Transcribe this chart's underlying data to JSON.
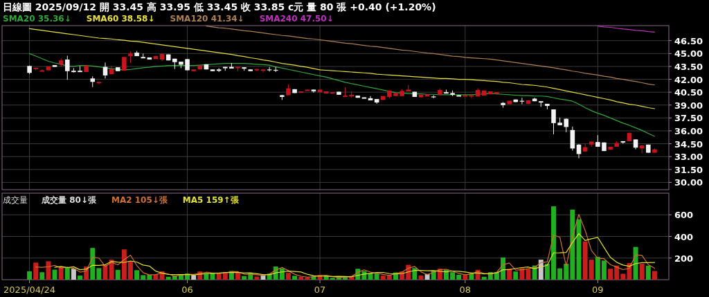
{
  "chart_data": [
    {
      "type": "candlestick",
      "title": "日線圖 2025/09/12 開 33.45 高 33.95 低 33.45 收 33.85 c元 量 80 張 +0.40 (+1.20%)",
      "categories": [
        "2025/04/24",
        null,
        null,
        null,
        null,
        null,
        null,
        null,
        null,
        null,
        null,
        null,
        null,
        null,
        null,
        null,
        null,
        null,
        null,
        null,
        null,
        null,
        null,
        null,
        null,
        "06",
        null,
        null,
        null,
        null,
        null,
        null,
        null,
        null,
        null,
        null,
        null,
        null,
        null,
        null,
        null,
        null,
        null,
        null,
        null,
        null,
        "07",
        null,
        null,
        null,
        null,
        null,
        null,
        null,
        null,
        null,
        null,
        null,
        null,
        null,
        null,
        null,
        null,
        null,
        null,
        null,
        null,
        null,
        null,
        "08",
        null,
        null,
        null,
        null,
        null,
        null,
        null,
        null,
        null,
        null,
        null,
        null,
        null,
        null,
        null,
        null,
        null,
        null,
        null,
        null,
        "09",
        null,
        null,
        null,
        null,
        null,
        null,
        null,
        null,
        null
      ],
      "ohlc": [
        [
          43.55,
          43.6,
          42.6,
          42.75
        ],
        [
          43.2,
          43.35,
          43.05,
          43.35
        ],
        [
          42.95,
          43.15,
          42.95,
          43.05
        ],
        [
          43.05,
          43.5,
          43.05,
          43.5
        ],
        [
          43.65,
          43.65,
          43.45,
          43.45
        ],
        [
          43.7,
          44.4,
          43.5,
          44.2
        ],
        [
          44.3,
          44.75,
          41.95,
          42.95
        ],
        [
          43.0,
          43.3,
          42.8,
          42.95
        ],
        [
          43.0,
          43.55,
          42.85,
          42.85
        ],
        [
          42.85,
          43.65,
          42.85,
          43.6
        ],
        [
          42.1,
          42.35,
          41.1,
          41.7
        ],
        [
          41.6,
          41.7,
          41.45,
          41.7
        ],
        [
          43.45,
          43.95,
          42.1,
          42.45
        ],
        [
          42.6,
          43.55,
          42.6,
          43.2
        ],
        [
          43.4,
          43.4,
          42.95,
          42.95
        ],
        [
          43.0,
          44.6,
          43.0,
          44.6
        ],
        [
          44.7,
          45.25,
          43.9,
          45.0
        ],
        [
          45.1,
          45.3,
          44.7,
          44.7
        ],
        [
          44.6,
          45.0,
          44.55,
          44.55
        ],
        [
          44.55,
          44.55,
          44.3,
          44.3
        ],
        [
          44.35,
          44.7,
          44.35,
          44.7
        ],
        [
          44.3,
          44.95,
          44.1,
          44.95
        ],
        [
          44.9,
          44.9,
          44.2,
          44.2
        ],
        [
          44.4,
          44.4,
          43.2,
          44.0
        ],
        [
          44.05,
          44.05,
          43.3,
          43.7
        ],
        [
          44.35,
          44.35,
          43.05,
          43.05
        ],
        [
          42.95,
          43.15,
          42.95,
          43.15
        ],
        [
          43.15,
          43.6,
          43.15,
          43.6
        ],
        [
          43.75,
          43.75,
          43.15,
          43.15
        ],
        [
          43.15,
          43.15,
          42.95,
          42.95
        ],
        [
          43.15,
          43.3,
          42.85,
          43.0
        ],
        [
          43.45,
          43.45,
          43.0,
          43.4
        ],
        [
          43.45,
          43.9,
          43.25,
          43.25
        ],
        [
          43.3,
          43.45,
          42.95,
          43.45
        ],
        [
          43.4,
          43.4,
          43.0,
          43.3
        ],
        [
          43.15,
          43.15,
          42.95,
          42.95
        ],
        [
          43.05,
          43.2,
          42.95,
          43.2
        ],
        [
          43.05,
          43.15,
          42.8,
          43.15
        ],
        [
          43.1,
          43.45,
          42.9,
          43.1
        ],
        [
          43.05,
          43.45,
          42.85,
          43.05
        ],
        [
          40.15,
          40.2,
          39.6,
          39.95
        ],
        [
          40.15,
          41.4,
          40.15,
          40.95
        ],
        [
          40.85,
          40.85,
          40.4,
          40.4
        ],
        [
          40.5,
          40.6,
          40.5,
          40.6
        ],
        [
          40.65,
          40.8,
          40.65,
          40.8
        ],
        [
          40.8,
          40.8,
          40.45,
          40.6
        ],
        [
          40.5,
          40.8,
          40.5,
          40.8
        ],
        [
          40.35,
          40.6,
          40.35,
          40.6
        ],
        [
          40.35,
          40.5,
          40.35,
          40.5
        ],
        [
          40.55,
          40.55,
          40.2,
          40.2
        ],
        [
          40.0,
          41.05,
          40.0,
          40.1
        ],
        [
          40.0,
          40.6,
          39.85,
          40.2
        ],
        [
          40.1,
          40.1,
          39.85,
          39.85
        ],
        [
          39.9,
          39.9,
          39.8,
          39.8
        ],
        [
          39.8,
          40.05,
          39.55,
          39.55
        ],
        [
          39.7,
          39.7,
          39.15,
          39.3
        ],
        [
          39.6,
          40.05,
          39.6,
          40.05
        ],
        [
          39.95,
          40.7,
          39.8,
          40.7
        ],
        [
          40.05,
          40.4,
          40.05,
          40.4
        ],
        [
          40.05,
          40.85,
          40.05,
          40.65
        ],
        [
          40.6,
          41.35,
          40.6,
          40.8
        ],
        [
          40.55,
          40.55,
          39.95,
          39.95
        ],
        [
          39.9,
          40.2,
          39.9,
          40.2
        ],
        [
          40.0,
          40.25,
          40.0,
          40.25
        ],
        [
          39.95,
          40.15,
          39.8,
          39.95
        ],
        [
          40.2,
          40.95,
          40.2,
          40.75
        ],
        [
          40.5,
          40.8,
          40.45,
          40.45
        ],
        [
          40.4,
          40.7,
          40.05,
          40.2
        ],
        [
          40.15,
          40.15,
          40.1,
          40.1
        ],
        [
          40.05,
          40.15,
          40.05,
          40.15
        ],
        [
          40.05,
          40.15,
          39.8,
          40.15
        ],
        [
          40.0,
          40.95,
          40.0,
          40.75
        ],
        [
          40.1,
          40.7,
          40.1,
          40.7
        ],
        [
          40.25,
          40.6,
          40.25,
          40.6
        ],
        [
          40.3,
          40.5,
          40.2,
          40.5
        ],
        [
          39.25,
          39.35,
          38.7,
          39.0
        ],
        [
          39.1,
          39.5,
          39.1,
          39.5
        ],
        [
          39.65,
          39.65,
          39.35,
          39.35
        ],
        [
          39.45,
          39.85,
          39.1,
          39.45
        ],
        [
          39.15,
          39.55,
          39.15,
          39.55
        ],
        [
          39.75,
          39.85,
          39.45,
          39.45
        ],
        [
          39.45,
          39.45,
          38.8,
          39.4
        ],
        [
          39.15,
          39.15,
          38.5,
          38.9
        ],
        [
          38.5,
          38.5,
          35.6,
          36.9
        ],
        [
          36.95,
          37.55,
          36.65,
          36.65
        ],
        [
          37.4,
          37.45,
          35.85,
          36.45
        ],
        [
          36.1,
          36.5,
          33.7,
          33.95
        ],
        [
          34.4,
          34.45,
          32.8,
          33.3
        ],
        [
          33.6,
          34.55,
          33.6,
          34.1
        ],
        [
          34.4,
          34.75,
          34.15,
          34.75
        ],
        [
          34.7,
          35.5,
          34.15,
          34.15
        ],
        [
          34.65,
          34.65,
          33.65,
          33.65
        ],
        [
          33.8,
          34.15,
          33.8,
          34.15
        ],
        [
          34.15,
          34.8,
          34.15,
          34.6
        ],
        [
          34.8,
          34.8,
          34.5,
          34.75
        ],
        [
          34.8,
          35.85,
          34.8,
          35.75
        ],
        [
          35.0,
          35.0,
          33.85,
          34.05
        ],
        [
          33.95,
          34.3,
          33.4,
          34.3
        ],
        [
          34.4,
          34.4,
          33.45,
          33.45
        ],
        [
          33.45,
          33.95,
          33.45,
          33.85
        ]
      ],
      "series": [
        {
          "type": "line",
          "name": "SMA20 35.36↓",
          "color": "#2fa83a",
          "values": [
            45.0,
            44.7,
            44.4,
            44.1,
            43.9,
            43.75,
            43.55,
            43.5,
            43.6,
            43.6,
            43.55,
            43.45,
            43.35,
            43.25,
            43.15,
            43.1,
            43.15,
            43.25,
            43.35,
            43.4,
            43.5,
            43.55,
            43.6,
            43.6,
            43.6,
            43.6,
            43.6,
            43.65,
            43.7,
            43.75,
            43.8,
            43.85,
            43.85,
            43.85,
            43.85,
            43.8,
            43.75,
            43.7,
            43.65,
            43.45,
            43.3,
            43.15,
            43.0,
            42.85,
            42.7,
            42.55,
            42.4,
            42.25,
            42.05,
            41.85,
            41.65,
            41.5,
            41.35,
            41.2,
            41.05,
            40.9,
            40.75,
            40.6,
            40.45,
            40.4,
            40.35,
            40.3,
            40.3,
            40.25,
            40.25,
            40.2,
            40.2,
            40.2,
            40.2,
            40.2,
            40.2,
            40.25,
            40.3,
            40.35,
            40.3,
            40.25,
            40.2,
            40.15,
            40.1,
            40.1,
            40.05,
            40.05,
            40.0,
            39.85,
            39.7,
            39.6,
            39.45,
            39.1,
            38.7,
            38.35,
            38.05,
            37.8,
            37.5,
            37.2,
            36.9,
            36.65,
            36.35,
            36.05,
            35.7,
            35.36
          ]
        },
        {
          "type": "line",
          "name": "SMA60 38.58↓",
          "color": "#e8e040",
          "values": [
            47.9,
            47.8,
            47.7,
            47.6,
            47.5,
            47.4,
            47.3,
            47.2,
            47.1,
            47.0,
            46.9,
            46.8,
            46.75,
            46.7,
            46.6,
            46.55,
            46.45,
            46.4,
            46.3,
            46.2,
            46.1,
            46.0,
            45.9,
            45.8,
            45.7,
            45.6,
            45.5,
            45.4,
            45.3,
            45.2,
            45.1,
            45.0,
            44.9,
            44.75,
            44.65,
            44.5,
            44.4,
            44.25,
            44.15,
            44.0,
            43.85,
            43.75,
            43.65,
            43.5,
            43.4,
            43.25,
            43.1,
            43.05,
            43.0,
            42.95,
            42.9,
            42.85,
            42.8,
            42.75,
            42.7,
            42.6,
            42.55,
            42.5,
            42.45,
            42.4,
            42.35,
            42.3,
            42.25,
            42.2,
            42.15,
            42.1,
            42.1,
            42.05,
            42.0,
            42.0,
            41.95,
            41.9,
            41.85,
            41.8,
            41.75,
            41.65,
            41.6,
            41.5,
            41.4,
            41.35,
            41.3,
            41.2,
            41.1,
            40.95,
            40.8,
            40.65,
            40.5,
            40.35,
            40.2,
            40.05,
            39.9,
            39.75,
            39.6,
            39.4,
            39.25,
            39.1,
            39.0,
            38.85,
            38.7,
            38.58
          ]
        },
        {
          "type": "line",
          "name": "SMA120 41.34↓",
          "color": "#b08050",
          "values": [
            null,
            null,
            null,
            null,
            null,
            null,
            null,
            null,
            null,
            null,
            null,
            null,
            null,
            null,
            null,
            null,
            null,
            null,
            null,
            null,
            null,
            null,
            null,
            null,
            null,
            null,
            null,
            null,
            48.2,
            48.1,
            48.0,
            47.95,
            47.85,
            47.75,
            47.65,
            47.6,
            47.5,
            47.4,
            47.3,
            47.2,
            47.1,
            47.05,
            46.95,
            46.85,
            46.75,
            46.7,
            46.6,
            46.5,
            46.4,
            46.3,
            46.2,
            46.15,
            46.05,
            45.95,
            45.85,
            45.8,
            45.7,
            45.6,
            45.5,
            45.4,
            45.35,
            45.25,
            45.15,
            45.05,
            45.0,
            44.9,
            44.8,
            44.7,
            44.65,
            44.55,
            44.5,
            44.45,
            44.4,
            44.35,
            44.25,
            44.15,
            44.05,
            43.95,
            43.85,
            43.75,
            43.65,
            43.55,
            43.45,
            43.35,
            43.2,
            43.1,
            42.95,
            42.85,
            42.7,
            42.6,
            42.5,
            42.35,
            42.25,
            42.1,
            42.0,
            41.85,
            41.75,
            41.6,
            41.45,
            41.34
          ]
        },
        {
          "type": "line",
          "name": "SMA240 47.50↓",
          "color": "#c030c0",
          "values": [
            null,
            null,
            null,
            null,
            null,
            null,
            null,
            null,
            null,
            null,
            null,
            null,
            null,
            null,
            null,
            null,
            null,
            null,
            null,
            null,
            null,
            null,
            null,
            null,
            null,
            null,
            null,
            null,
            null,
            null,
            null,
            null,
            null,
            null,
            null,
            null,
            null,
            null,
            null,
            null,
            null,
            null,
            null,
            null,
            null,
            null,
            null,
            null,
            null,
            null,
            null,
            null,
            null,
            null,
            null,
            null,
            null,
            null,
            null,
            null,
            null,
            null,
            null,
            null,
            null,
            null,
            null,
            null,
            null,
            null,
            null,
            null,
            null,
            null,
            null,
            null,
            null,
            null,
            null,
            null,
            null,
            null,
            null,
            null,
            null,
            null,
            null,
            null,
            null,
            null,
            48.2,
            48.1,
            48.05,
            47.95,
            47.85,
            47.8,
            47.7,
            47.65,
            47.55,
            47.5
          ]
        }
      ],
      "ylim": [
        29.15,
        48.25
      ],
      "yticks": [
        {
          "value": 30,
          "label": "30.00"
        },
        {
          "value": 31.5,
          "label": "31.50"
        },
        {
          "value": 33,
          "label": "33.00"
        },
        {
          "value": 34.5,
          "label": "34.50"
        },
        {
          "value": 36,
          "label": "36.00"
        },
        {
          "value": 37.5,
          "label": "37.50"
        },
        {
          "value": 39,
          "label": "39.00"
        },
        {
          "value": 40.5,
          "label": "40.50"
        },
        {
          "value": 42,
          "label": "42.00"
        },
        {
          "value": 43.5,
          "label": "43.50"
        },
        {
          "value": 45,
          "label": "45.00"
        },
        {
          "value": 46.5,
          "label": "46.50"
        }
      ],
      "grid": true,
      "legend": "top left",
      "tick_labels": "y"
    },
    {
      "type": "bar",
      "title": "成交量",
      "categories": [
        "2025/04/24",
        null,
        null,
        null,
        null,
        null,
        null,
        null,
        null,
        null,
        null,
        null,
        null,
        null,
        null,
        null,
        null,
        null,
        null,
        null,
        null,
        null,
        null,
        null,
        null,
        "06",
        null,
        null,
        null,
        null,
        null,
        null,
        null,
        null,
        null,
        null,
        null,
        null,
        null,
        null,
        null,
        null,
        null,
        null,
        null,
        null,
        "07",
        null,
        null,
        null,
        null,
        null,
        null,
        null,
        null,
        null,
        null,
        null,
        null,
        null,
        null,
        null,
        null,
        null,
        null,
        null,
        null,
        null,
        null,
        "08",
        null,
        null,
        null,
        null,
        null,
        null,
        null,
        null,
        null,
        null,
        null,
        null,
        null,
        null,
        null,
        null,
        null,
        null,
        null,
        null,
        "09",
        null,
        null,
        null,
        null,
        null,
        null,
        null,
        null,
        null
      ],
      "series": [
        {
          "name": "成交量 80↓張",
          "values": [
            78,
            158,
            69,
            170,
            93,
            120,
            109,
            101,
            38,
            122,
            293,
            107,
            137,
            185,
            91,
            280,
            173,
            88,
            42,
            46,
            48,
            78,
            27,
            38,
            46,
            55,
            42,
            76,
            61,
            63,
            59,
            69,
            80,
            67,
            34,
            63,
            29,
            48,
            55,
            122,
            105,
            63,
            36,
            27,
            21,
            32,
            44,
            38,
            17,
            23,
            23,
            34,
            101,
            80,
            59,
            59,
            38,
            42,
            67,
            74,
            137,
            107,
            38,
            53,
            84,
            101,
            91,
            69,
            46,
            46,
            59,
            91,
            27,
            69,
            69,
            206,
            101,
            76,
            107,
            97,
            131,
            185,
            147,
            678,
            105,
            147,
            648,
            558,
            354,
            185,
            211,
            177,
            101,
            131,
            55,
            154,
            303,
            147,
            130,
            80
          ],
          "colors": [
            "#22b022",
            "#c81e1e",
            "#22b022",
            "#c81e1e",
            "#22b022",
            "#c81e1e",
            "#22b022",
            "#c8c8c8",
            "#22b022",
            "#c81e1e",
            "#22b022",
            "#22b022",
            "#c81e1e",
            "#c81e1e",
            "#22b022",
            "#c81e1e",
            "#c81e1e",
            "#22b022",
            "#22b022",
            "#22b022",
            "#c81e1e",
            "#c81e1e",
            "#22b022",
            "#22b022",
            "#22b022",
            "#22b022",
            "#c8c8c8",
            "#c81e1e",
            "#22b022",
            "#22b022",
            "#c81e1e",
            "#c81e1e",
            "#22b022",
            "#c81e1e",
            "#22b022",
            "#22b022",
            "#c81e1e",
            "#c8c8c8",
            "#22b022",
            "#22b022",
            "#22b022",
            "#c81e1e",
            "#22b022",
            "#c81e1e",
            "#c81e1e",
            "#22b022",
            "#c81e1e",
            "#22b022",
            "#22b022",
            "#22b022",
            "#22b022",
            "#c81e1e",
            "#22b022",
            "#22b022",
            "#22b022",
            "#22b022",
            "#c81e1e",
            "#c81e1e",
            "#22b022",
            "#c81e1e",
            "#c81e1e",
            "#22b022",
            "#c81e1e",
            "#c8c8c8",
            "#22b022",
            "#c81e1e",
            "#22b022",
            "#22b022",
            "#22b022",
            "#c81e1e",
            "#22b022",
            "#c81e1e",
            "#22b022",
            "#22b022",
            "#22b022",
            "#22b022",
            "#c81e1e",
            "#22b022",
            "#c81e1e",
            "#c81e1e",
            "#22b022",
            "#c8c8c8",
            "#22b022",
            "#22b022",
            "#22b022",
            "#22b022",
            "#22b022",
            "#22b022",
            "#c81e1e",
            "#c81e1e",
            "#22b022",
            "#22b022",
            "#c81e1e",
            "#c81e1e",
            "#c81e1e",
            "#c81e1e",
            "#22b022",
            "#c81e1e",
            "#22b022",
            "#c81e1e"
          ]
        },
        {
          "type": "line",
          "name": "MA2 105↓張",
          "color": "#d07030",
          "values": [
            null,
            118,
            114,
            120,
            132,
            107,
            115,
            105,
            70,
            80,
            208,
            200,
            122,
            161,
            138,
            186,
            227,
            131,
            65,
            44,
            47,
            63,
            53,
            33,
            42,
            51,
            49,
            59,
            69,
            62,
            61,
            64,
            75,
            74,
            51,
            49,
            46,
            39,
            52,
            89,
            114,
            84,
            50,
            32,
            24,
            27,
            38,
            41,
            28,
            20,
            23,
            29,
            68,
            91,
            70,
            59,
            49,
            40,
            55,
            71,
            106,
            122,
            73,
            46,
            69,
            93,
            96,
            80,
            58,
            46,
            53,
            75,
            59,
            48,
            69,
            138,
            154,
            89,
            92,
            102,
            114,
            158,
            166,
            413,
            392,
            126,
            398,
            603,
            456,
            270,
            198,
            194,
            139,
            116,
            93,
            105,
            229,
            225,
            139,
            105
          ]
        },
        {
          "type": "line",
          "name": "MA5 159↑張",
          "color": "#e0e030",
          "values": [
            null,
            null,
            null,
            null,
            114,
            122,
            112,
            119,
            92,
            98,
            133,
            132,
            139,
            169,
            163,
            160,
            173,
            163,
            135,
            126,
            79,
            60,
            48,
            47,
            47,
            49,
            42,
            51,
            56,
            59,
            60,
            66,
            66,
            68,
            62,
            63,
            55,
            48,
            46,
            63,
            72,
            79,
            76,
            71,
            50,
            36,
            32,
            32,
            30,
            31,
            29,
            27,
            40,
            52,
            59,
            67,
            67,
            56,
            53,
            56,
            72,
            85,
            85,
            82,
            84,
            77,
            73,
            80,
            78,
            71,
            62,
            62,
            54,
            58,
            63,
            92,
            94,
            104,
            112,
            117,
            102,
            119,
            133,
            248,
            249,
            252,
            345,
            427,
            362,
            378,
            391,
            297,
            206,
            161,
            135,
            124,
            149,
            158,
            158,
            159
          ]
        }
      ],
      "ylim": [
        0,
        800
      ],
      "yticks": [
        200,
        400,
        600
      ],
      "grid": true,
      "legend": "top left"
    }
  ]
}
